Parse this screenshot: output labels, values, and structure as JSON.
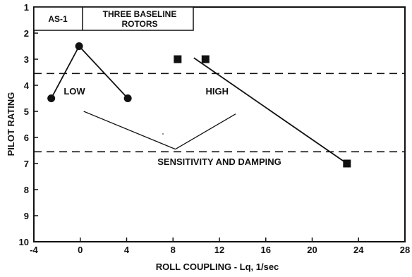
{
  "chart_data": {
    "type": "line",
    "tag": "AS-1",
    "title_lines": [
      "THREE BASELINE",
      "ROTORS"
    ],
    "xlabel": "ROLL COUPLING - Lq, 1/sec",
    "ylabel": "PILOT RATING",
    "xlim": [
      -4,
      28
    ],
    "ylim": [
      1,
      10
    ],
    "y_inverted": true,
    "x_ticks": [
      -4,
      0,
      4,
      8,
      12,
      16,
      20,
      24,
      28
    ],
    "y_ticks": [
      1,
      2,
      3,
      4,
      5,
      6,
      7,
      8,
      9,
      10
    ],
    "grid": false,
    "series": [
      {
        "marker": "circle",
        "points": [
          [
            -2.5,
            4.5
          ],
          [
            -0.1,
            2.5
          ],
          [
            4.1,
            4.5
          ]
        ],
        "lines": [
          [
            [
              -2.5,
              4.5
            ],
            [
              -0.1,
              2.5
            ]
          ],
          [
            [
              -0.1,
              2.5
            ],
            [
              4.1,
              4.5
            ]
          ]
        ]
      },
      {
        "marker": "square",
        "points": [
          [
            8.4,
            3.0
          ],
          [
            10.8,
            3.0
          ],
          [
            23.0,
            7.0
          ]
        ],
        "lines": [
          [
            [
              9.8,
              2.95
            ],
            [
              23.0,
              7.0
            ]
          ]
        ]
      }
    ],
    "reference_lines": [
      {
        "axis": "y",
        "value": 3.55,
        "style": "dashed"
      },
      {
        "axis": "y",
        "value": 6.55,
        "style": "dashed"
      }
    ],
    "annotations": [
      {
        "text": "LOW",
        "x": -0.5,
        "y": 4.35
      },
      {
        "text": "HIGH",
        "x": 11.8,
        "y": 4.35
      },
      {
        "text": "SENSITIVITY AND DAMPING",
        "x": 12.0,
        "y": 7.05
      }
    ],
    "pointer_lines": [
      [
        [
          0.3,
          5.0
        ],
        [
          8.2,
          6.45
        ]
      ],
      [
        [
          8.2,
          6.45
        ],
        [
          13.4,
          5.1
        ]
      ]
    ]
  }
}
